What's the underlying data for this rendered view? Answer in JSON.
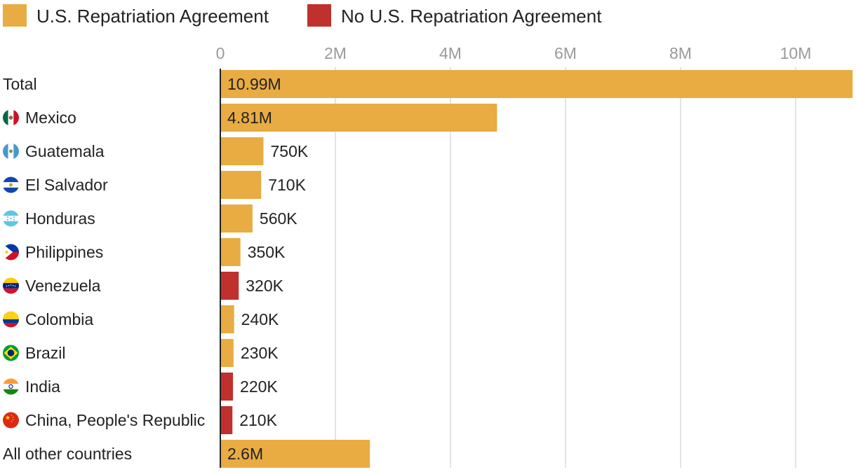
{
  "legend": [
    {
      "label": "U.S. Repatriation Agreement",
      "color": "#E8AC42"
    },
    {
      "label": "No U.S. Repatriation Agreement",
      "color": "#C0302C"
    }
  ],
  "chart_data": {
    "type": "bar",
    "orientation": "horizontal",
    "title": "",
    "xlabel": "",
    "ylabel": "",
    "xlim": [
      0,
      11000000
    ],
    "grid": true,
    "legend_position": "top-left",
    "ticks": [
      {
        "value": 0,
        "label": "0"
      },
      {
        "value": 2000000,
        "label": "2M"
      },
      {
        "value": 4000000,
        "label": "4M"
      },
      {
        "value": 6000000,
        "label": "6M"
      },
      {
        "value": 8000000,
        "label": "8M"
      },
      {
        "value": 10000000,
        "label": "10M"
      }
    ],
    "categories": [
      "Total",
      "Mexico",
      "Guatemala",
      "El Salvador",
      "Honduras",
      "Philippines",
      "Venezuela",
      "Colombia",
      "Brazil",
      "India",
      "China, People's Republic",
      "All other countries"
    ],
    "values": [
      10990000,
      4810000,
      750000,
      710000,
      560000,
      350000,
      320000,
      240000,
      230000,
      220000,
      210000,
      2600000
    ],
    "value_labels": [
      "10.99M",
      "4.81M",
      "750K",
      "710K",
      "560K",
      "350K",
      "320K",
      "240K",
      "230K",
      "220K",
      "210K",
      "2.6M"
    ],
    "agreement": [
      "U.S. Repatriation Agreement",
      "U.S. Repatriation Agreement",
      "U.S. Repatriation Agreement",
      "U.S. Repatriation Agreement",
      "U.S. Repatriation Agreement",
      "U.S. Repatriation Agreement",
      "No U.S. Repatriation Agreement",
      "U.S. Repatriation Agreement",
      "U.S. Repatriation Agreement",
      "No U.S. Repatriation Agreement",
      "No U.S. Repatriation Agreement",
      "U.S. Repatriation Agreement"
    ],
    "flag_icons": [
      "",
      "mexico-flag-icon",
      "guatemala-flag-icon",
      "el-salvador-flag-icon",
      "honduras-flag-icon",
      "philippines-flag-icon",
      "venezuela-flag-icon",
      "colombia-flag-icon",
      "brazil-flag-icon",
      "india-flag-icon",
      "china-flag-icon",
      ""
    ]
  }
}
